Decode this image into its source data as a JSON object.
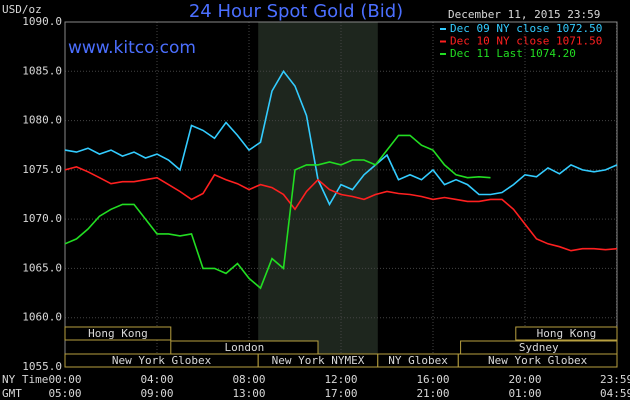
{
  "chart_data": {
    "type": "line",
    "title": "24 Hour Spot Gold (Bid)",
    "date_label": "December 11, 2015 23:59",
    "website": "www.kitco.com",
    "y_label": "USD/oz",
    "x_label": "NY Time",
    "x2_label": "GMT",
    "x": [
      0,
      0.5,
      1,
      1.5,
      2,
      2.5,
      3,
      3.5,
      4,
      4.5,
      5,
      5.5,
      6,
      6.5,
      7,
      7.5,
      8,
      8.5,
      9,
      9.5,
      10,
      10.5,
      11,
      11.5,
      12,
      12.5,
      13,
      13.5,
      14,
      14.5,
      15,
      15.5,
      16,
      16.5,
      17,
      17.5,
      18,
      18.5,
      19,
      19.5,
      20,
      20.5,
      21,
      21.5,
      22,
      22.5,
      23,
      23.5,
      24
    ],
    "series": [
      {
        "name": "Dec 09 NY close 1072.50",
        "color": "#33ccff",
        "values": [
          1077.0,
          1076.8,
          1077.2,
          1076.6,
          1077.0,
          1076.4,
          1076.8,
          1076.2,
          1076.6,
          1076.0,
          1075.0,
          1079.5,
          1079.0,
          1078.2,
          1079.8,
          1078.5,
          1077.0,
          1077.8,
          1083.0,
          1085.0,
          1083.5,
          1080.5,
          1074.0,
          1071.5,
          1073.5,
          1073.0,
          1074.5,
          1075.5,
          1076.5,
          1074.0,
          1074.5,
          1074.0,
          1075.0,
          1073.5,
          1074.0,
          1073.5,
          1072.5,
          1072.5,
          1072.7,
          1073.5,
          1074.5,
          1074.3,
          1075.2,
          1074.6,
          1075.5,
          1075.0,
          1074.8,
          1075.0,
          1075.5
        ]
      },
      {
        "name": "Dec 10 NY close 1071.50",
        "color": "#ff2020",
        "values": [
          1075.0,
          1075.3,
          1074.8,
          1074.2,
          1073.6,
          1073.8,
          1073.8,
          1074.0,
          1074.2,
          1073.5,
          1072.8,
          1072.0,
          1072.6,
          1074.5,
          1074.0,
          1073.6,
          1073.0,
          1073.5,
          1073.2,
          1072.5,
          1071.0,
          1072.8,
          1074.0,
          1073.0,
          1072.5,
          1072.3,
          1072.0,
          1072.5,
          1072.8,
          1072.6,
          1072.5,
          1072.3,
          1072.0,
          1072.2,
          1072.0,
          1071.8,
          1071.8,
          1072.0,
          1072.0,
          1071.0,
          1069.5,
          1068.0,
          1067.5,
          1067.2,
          1066.8,
          1067.0,
          1067.0,
          1066.9,
          1067.0
        ]
      },
      {
        "name": "Dec 11 Last 1074.20",
        "color": "#22dd22",
        "values": [
          1067.5,
          1068.0,
          1069.0,
          1070.3,
          1071.0,
          1071.5,
          1071.5,
          1070.0,
          1068.5,
          1068.5,
          1068.3,
          1068.5,
          1065.0,
          1065.0,
          1064.5,
          1065.5,
          1064.0,
          1063.0,
          1066.0,
          1065.0,
          1075.0,
          1075.5,
          1075.5,
          1075.8,
          1075.5,
          1076.0,
          1076.0,
          1075.5,
          1077.0,
          1078.5,
          1078.5,
          1077.5,
          1077.0,
          1075.5,
          1074.5,
          1074.2,
          1074.3,
          1074.2,
          null,
          null,
          null,
          null,
          null,
          null,
          null,
          null,
          null,
          null,
          null
        ]
      }
    ],
    "xlim": [
      0,
      24
    ],
    "xticks": [
      {
        "value": 0,
        "label": "00:00"
      },
      {
        "value": 4,
        "label": "04:00"
      },
      {
        "value": 8,
        "label": "08:00"
      },
      {
        "value": 12,
        "label": "12:00"
      },
      {
        "value": 16,
        "label": "16:00"
      },
      {
        "value": 20,
        "label": "20:00"
      },
      {
        "value": 23.98,
        "label": "23:59"
      }
    ],
    "x2_tick_labels": [
      "05:00",
      "09:00",
      "13:00",
      "17:00",
      "21:00",
      "01:00",
      "04:59"
    ],
    "ylim": [
      1055,
      1090
    ],
    "yticks": [
      {
        "value": 1055,
        "label": "1055.0"
      },
      {
        "value": 1060,
        "label": "1060.0"
      },
      {
        "value": 1065,
        "label": "1065.0"
      },
      {
        "value": 1070,
        "label": "1070.0"
      },
      {
        "value": 1075,
        "label": "1075.0"
      },
      {
        "value": 1080,
        "label": "1080.0"
      },
      {
        "value": 1085,
        "label": "1085.0"
      },
      {
        "value": 1090,
        "label": "1090.0"
      }
    ],
    "highlight_range": [
      8.4,
      13.6
    ],
    "grid": true,
    "sessions": [
      [
        {
          "label": "Hong Kong",
          "start": 0,
          "end": 4.6
        },
        {
          "label": "Hong Kong",
          "start": 19.6,
          "end": 24
        }
      ],
      [
        {
          "label": "London",
          "start": 4.6,
          "end": 11.0
        },
        {
          "label": "Sydney",
          "start": 17.2,
          "end": 24
        }
      ],
      [
        {
          "label": "New York Globex",
          "start": 0,
          "end": 8.4
        },
        {
          "label": "New York NYMEX",
          "start": 8.4,
          "end": 13.6
        },
        {
          "label": "NY Globex",
          "start": 13.6,
          "end": 17.1
        },
        {
          "label": "New York Globex",
          "start": 17.1,
          "end": 24
        }
      ]
    ]
  }
}
